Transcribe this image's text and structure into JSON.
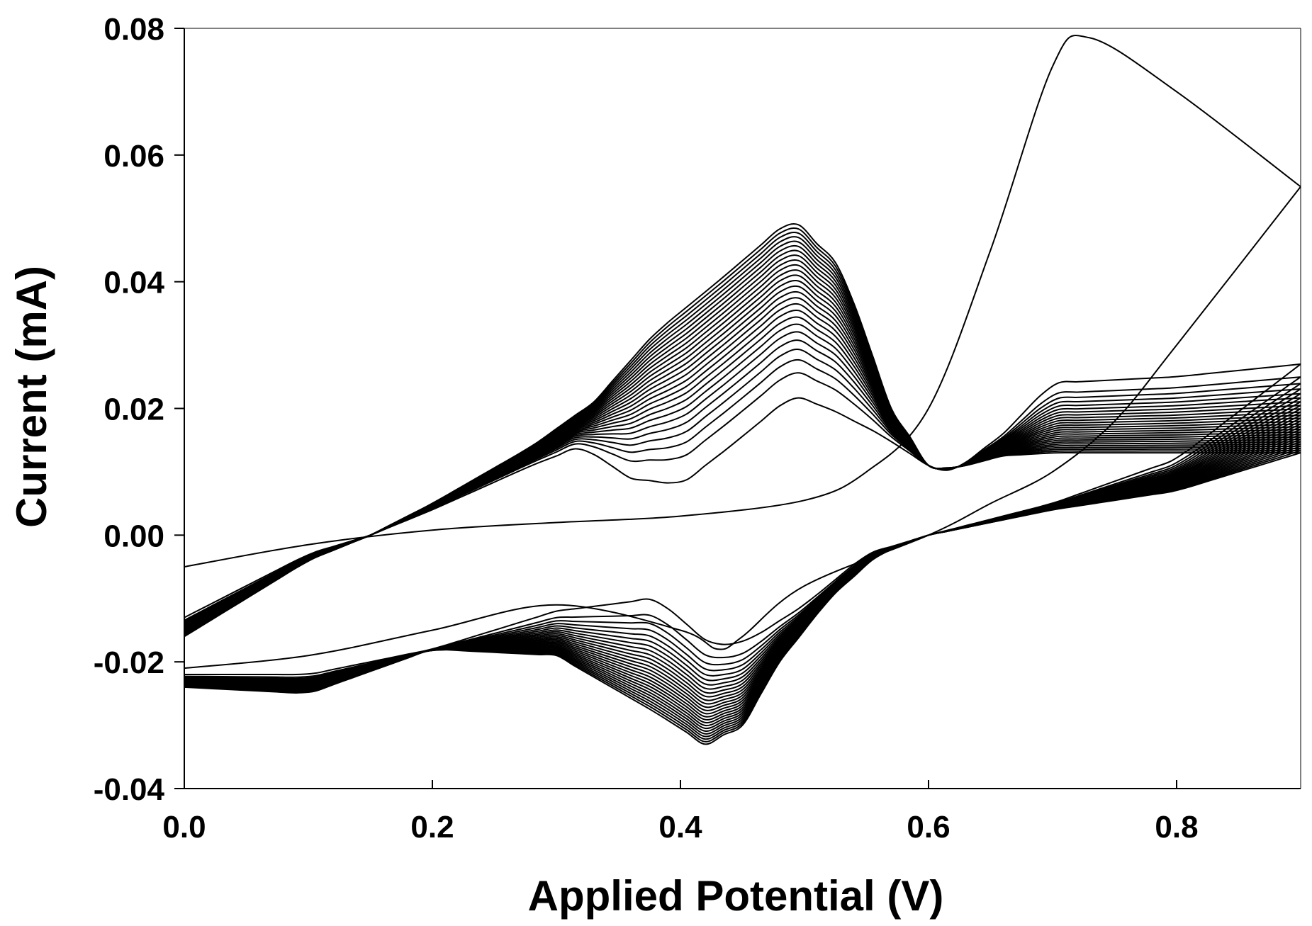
{
  "chart_data": {
    "type": "line",
    "title": "",
    "xlabel": "Applied Potential (V)",
    "ylabel": "Current (mA)",
    "xlim": [
      0.0,
      0.9
    ],
    "ylim": [
      -0.04,
      0.08
    ],
    "xticks": [
      0.0,
      0.2,
      0.4,
      0.6,
      0.8
    ],
    "xtick_labels": [
      "0.0",
      "0.2",
      "0.4",
      "0.6",
      "0.8"
    ],
    "yticks": [
      -0.04,
      -0.02,
      0.0,
      0.02,
      0.04,
      0.06,
      0.08
    ],
    "ytick_labels": [
      "-0.04",
      "-0.02",
      "0.00",
      "0.02",
      "0.04",
      "0.06",
      "0.08"
    ],
    "grid": false,
    "legend": "none",
    "line_color": "#000000",
    "cycles": 26,
    "series": [
      {
        "forward": {
          "x": [
            0.0,
            0.1,
            0.2,
            0.3,
            0.4,
            0.5,
            0.55,
            0.6,
            0.65,
            0.7,
            0.73,
            0.8,
            0.9
          ],
          "y": [
            -0.005,
            -0.0015,
            0.0008,
            0.002,
            0.003,
            0.0055,
            0.01,
            0.02,
            0.045,
            0.074,
            0.0785,
            0.07,
            0.055
          ]
        },
        "reverse": {
          "x": [
            0.9,
            0.8,
            0.75,
            0.7,
            0.65,
            0.6,
            0.5,
            0.45,
            0.43,
            0.4,
            0.3,
            0.2,
            0.1,
            0.0
          ],
          "y": [
            0.055,
            0.03,
            0.018,
            0.01,
            0.005,
            0.0,
            -0.008,
            -0.016,
            -0.018,
            -0.015,
            -0.011,
            -0.015,
            -0.019,
            -0.021
          ]
        }
      },
      {
        "forward": {
          "x": [
            0.0,
            0.1,
            0.15,
            0.2,
            0.28,
            0.32,
            0.36,
            0.4,
            0.44,
            0.49,
            0.52,
            0.56,
            0.6,
            0.62,
            0.66,
            0.7,
            0.8,
            0.9
          ],
          "y": [
            -0.013,
            -0.003,
            0.0,
            0.004,
            0.011,
            0.014,
            0.009,
            0.008,
            0.014,
            0.022,
            0.02,
            0.016,
            0.011,
            0.01,
            0.016,
            0.024,
            0.025,
            0.027
          ]
        },
        "reverse": {
          "x": [
            0.9,
            0.8,
            0.7,
            0.6,
            0.55,
            0.5,
            0.46,
            0.44,
            0.42,
            0.38,
            0.3,
            0.2,
            0.1,
            0.0
          ],
          "y": [
            0.027,
            0.012,
            0.005,
            0.0,
            -0.003,
            -0.011,
            -0.016,
            -0.0175,
            -0.0165,
            -0.01,
            -0.012,
            -0.018,
            -0.022,
            -0.022
          ]
        }
      },
      {
        "forward": {
          "x": [
            0.0,
            0.1,
            0.15,
            0.2,
            0.28,
            0.33,
            0.38,
            0.43,
            0.49,
            0.53,
            0.57,
            0.6,
            0.62,
            0.66,
            0.7,
            0.8,
            0.9
          ],
          "y": [
            -0.016,
            -0.004,
            0.0,
            0.005,
            0.014,
            0.021,
            0.032,
            0.04,
            0.05,
            0.042,
            0.02,
            0.011,
            0.0105,
            0.0125,
            0.013,
            0.013,
            0.013
          ]
        },
        "reverse": {
          "x": [
            0.9,
            0.8,
            0.7,
            0.6,
            0.56,
            0.52,
            0.48,
            0.45,
            0.42,
            0.38,
            0.3,
            0.2,
            0.1,
            0.0
          ],
          "y": [
            0.013,
            0.007,
            0.004,
            0.0,
            -0.003,
            -0.01,
            -0.02,
            -0.03,
            -0.033,
            -0.028,
            -0.019,
            -0.018,
            -0.025,
            -0.024
          ]
        }
      }
    ]
  }
}
